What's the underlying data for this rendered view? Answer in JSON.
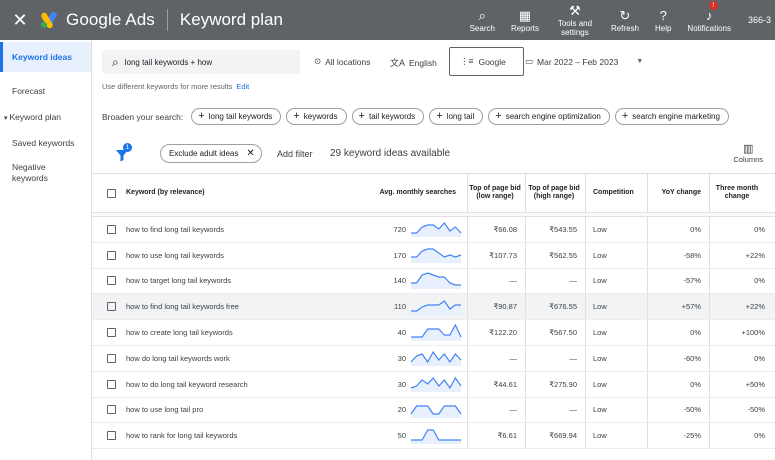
{
  "topbar": {
    "close_icon": "close-icon",
    "brand": "Google Ads",
    "page_title": "Keyword plan",
    "actions": [
      {
        "label": "Search",
        "icon": "search-icon",
        "glyph": "⌕"
      },
      {
        "label": "Reports",
        "icon": "bar-chart-icon",
        "glyph": "▦"
      },
      {
        "label": "Tools and settings",
        "icon": "wrench-icon",
        "glyph": "⚒"
      },
      {
        "label": "Refresh",
        "icon": "refresh-icon",
        "glyph": "↻"
      },
      {
        "label": "Help",
        "icon": "help-icon",
        "glyph": "?"
      },
      {
        "label": "Notifications",
        "icon": "bell-icon",
        "glyph": "♪",
        "badge": "!"
      }
    ],
    "account": "366-3"
  },
  "sidebar": {
    "items": [
      {
        "label": "Keyword ideas",
        "active": true
      },
      {
        "label": "Forecast"
      },
      {
        "label": "Keyword plan",
        "caret": "▾"
      },
      {
        "label": "Saved keywords"
      },
      {
        "label": "Negative keywords"
      }
    ]
  },
  "search": {
    "value": "long tail keywords + how",
    "location": "All locations",
    "language": "English",
    "network": "Google",
    "date_range": "Mar 2022 – Feb 2023",
    "hint": "Use different keywords for more results",
    "hint_link": "Edit"
  },
  "broaden": {
    "label": "Broaden your search:",
    "chips": [
      "long tail keywords",
      "keywords",
      "tail keywords",
      "long tail",
      "search engine optimization",
      "search engine marketing"
    ]
  },
  "filters": {
    "badge": "1",
    "exclude_chip": "Exclude adult ideas",
    "add_filter": "Add filter",
    "available": "29 keyword ideas available",
    "columns": "Columns"
  },
  "table": {
    "headers": {
      "keyword": "Keyword (by relevance)",
      "avg": "Avg. monthly searches",
      "low": "Top of page bid (low range)",
      "high": "Top of page bid (high range)",
      "competition": "Competition",
      "yoy": "YoY change",
      "three_month": "Three month change"
    },
    "rows": [
      {
        "keyword": "how to find long tail keywords",
        "avg": "720",
        "low": "₹66.08",
        "high": "₹543.55",
        "competition": "Low",
        "yoy": "0%",
        "three_month": "0%",
        "trend": [
          2,
          2,
          5,
          6,
          6,
          4,
          7,
          3,
          5,
          2
        ]
      },
      {
        "keyword": "how to use long tail keywords",
        "avg": "170",
        "low": "₹107.73",
        "high": "₹562.55",
        "competition": "Low",
        "yoy": "-58%",
        "three_month": "+22%",
        "trend": [
          3,
          3,
          6,
          7,
          7,
          5,
          3,
          4,
          3,
          4
        ]
      },
      {
        "keyword": "how to target long tail keywords",
        "avg": "140",
        "low": "—",
        "high": "—",
        "competition": "Low",
        "yoy": "-57%",
        "three_month": "0%",
        "trend": [
          3,
          3,
          7,
          8,
          7,
          6,
          6,
          3,
          2,
          2
        ]
      },
      {
        "keyword": "how to find long tail keywords free",
        "avg": "110",
        "low": "₹90.87",
        "high": "₹676.55",
        "competition": "Low",
        "yoy": "+57%",
        "three_month": "+22%",
        "trend": [
          2,
          2,
          4,
          5,
          5,
          5,
          7,
          3,
          5,
          5
        ],
        "highlight": true
      },
      {
        "keyword": "how to create long tail keywords",
        "avg": "40",
        "low": "₹122.20",
        "high": "₹567.50",
        "competition": "Low",
        "yoy": "0%",
        "three_month": "+100%",
        "trend": [
          2,
          2,
          2,
          6,
          6,
          6,
          3,
          3,
          8,
          2
        ]
      },
      {
        "keyword": "how do long tail keywords work",
        "avg": "30",
        "low": "—",
        "high": "—",
        "competition": "Low",
        "yoy": "-60%",
        "three_month": "0%",
        "trend": [
          2,
          5,
          6,
          2,
          7,
          3,
          6,
          2,
          6,
          3
        ]
      },
      {
        "keyword": "how to do long tail keyword research",
        "avg": "30",
        "low": "₹44.61",
        "high": "₹275.90",
        "competition": "Low",
        "yoy": "0%",
        "three_month": "+50%",
        "trend": [
          2,
          3,
          6,
          4,
          7,
          3,
          6,
          2,
          7,
          3
        ]
      },
      {
        "keyword": "how to use long tail pro",
        "avg": "20",
        "low": "—",
        "high": "—",
        "competition": "Low",
        "yoy": "-50%",
        "three_month": "-50%",
        "trend": [
          2,
          6,
          6,
          6,
          2,
          2,
          6,
          6,
          6,
          2
        ]
      },
      {
        "keyword": "how to rank for long tail keywords",
        "avg": "50",
        "low": "₹6.61",
        "high": "₹669.94",
        "competition": "Low",
        "yoy": "-25%",
        "three_month": "0%",
        "trend": [
          2,
          2,
          2,
          7,
          7,
          2,
          2,
          2,
          2,
          2
        ]
      }
    ]
  },
  "colors": {
    "topbar": "#5f6368",
    "accent": "#1a73e8",
    "spark": "#4285f4"
  }
}
